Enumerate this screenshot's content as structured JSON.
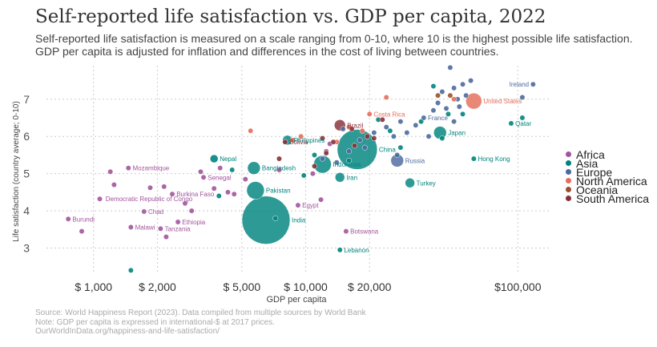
{
  "title": "Self-reported life satisfaction vs. GDP per capita, 2022",
  "subtitle": "Self-reported life satisfaction is measured on a scale ranging from 0-10, where 10 is the highest possible life satisfaction. GDP per capita is adjusted for inflation and differences in the cost of living between countries.",
  "footer": {
    "source": "Source: World Happiness Report (2023). Data compiled from multiple sources by World Bank",
    "note": "Note: GDP per capita is expressed in international-$ at 2017 prices.",
    "url": "OurWorldInData.org/happiness-and-life-satisfaction/"
  },
  "legend": [
    {
      "name": "Africa",
      "color": "#a2559c"
    },
    {
      "name": "Asia",
      "color": "#00847e"
    },
    {
      "name": "Europe",
      "color": "#4c6a9c"
    },
    {
      "name": "North America",
      "color": "#e56e5a"
    },
    {
      "name": "Oceania",
      "color": "#9a5129"
    },
    {
      "name": "South America",
      "color": "#883039"
    }
  ],
  "chart_data": {
    "type": "scatter",
    "xlabel": "GDP per capita",
    "ylabel": "Life satisfaction (country average; 0-10)",
    "xscale": "log",
    "xlim": [
      600,
      140000
    ],
    "ylim": [
      2.3,
      7.9
    ],
    "xticks": [
      1000,
      2000,
      5000,
      10000,
      20000,
      100000
    ],
    "xtick_labels": [
      "$ 1,000",
      "$ 2,000",
      "$ 5,000",
      "$ 10,000",
      "$ 20,000",
      "$100,000"
    ],
    "yticks": [
      3,
      4,
      5,
      6,
      7
    ],
    "grid": true,
    "legend_position": "right",
    "series": [
      {
        "name": "Africa",
        "color": "#a2559c",
        "points": [
          {
            "x": 760,
            "y": 3.78,
            "label": "Burundi"
          },
          {
            "x": 1070,
            "y": 4.32,
            "label": "Democratic Republic of Congo"
          },
          {
            "x": 1500,
            "y": 3.56,
            "label": "Malawi"
          },
          {
            "x": 1460,
            "y": 5.15,
            "label": "Mozambique"
          },
          {
            "x": 1730,
            "y": 3.98,
            "label": "Chad"
          },
          {
            "x": 2070,
            "y": 3.52,
            "label": "Tanzania"
          },
          {
            "x": 2500,
            "y": 3.7,
            "label": "Ethiopia"
          },
          {
            "x": 2350,
            "y": 4.45,
            "label": "Burkina Faso"
          },
          {
            "x": 3300,
            "y": 4.9,
            "label": "Senegal"
          },
          {
            "x": 1200,
            "y": 5.05
          },
          {
            "x": 1850,
            "y": 4.62
          },
          {
            "x": 2150,
            "y": 4.65
          },
          {
            "x": 2700,
            "y": 4.2
          },
          {
            "x": 3200,
            "y": 5.05
          },
          {
            "x": 3700,
            "y": 4.6
          },
          {
            "x": 4300,
            "y": 4.5
          },
          {
            "x": 4600,
            "y": 4.45
          },
          {
            "x": 2900,
            "y": 4.0
          },
          {
            "x": 2200,
            "y": 3.3
          },
          {
            "x": 1250,
            "y": 4.7
          },
          {
            "x": 880,
            "y": 3.45
          },
          {
            "x": 3950,
            "y": 5.15
          },
          {
            "x": 7500,
            "y": 5.1
          },
          {
            "x": 11800,
            "y": 4.3
          },
          {
            "x": 9200,
            "y": 4.15,
            "label": "Egypt"
          },
          {
            "x": 15500,
            "y": 3.45,
            "label": "Botswana"
          },
          {
            "x": 12500,
            "y": 5.6
          },
          {
            "x": 10800,
            "y": 5.0
          },
          {
            "x": 5200,
            "y": 4.85
          },
          {
            "x": 13000,
            "y": 5.8
          }
        ]
      },
      {
        "name": "Asia",
        "color": "#00847e",
        "points": [
          {
            "x": 1500,
            "y": 2.4
          },
          {
            "x": 3700,
            "y": 5.4,
            "label": "Nepal"
          },
          {
            "x": 5800,
            "y": 4.55,
            "label": "Pakistan"
          },
          {
            "x": 5700,
            "y": 5.15,
            "label": "Bangladesh"
          },
          {
            "x": 6500,
            "y": 3.75,
            "label": "India"
          },
          {
            "x": 8200,
            "y": 5.9,
            "label": "Philippines"
          },
          {
            "x": 12000,
            "y": 5.25,
            "label": "Indonesia"
          },
          {
            "x": 14500,
            "y": 4.9,
            "label": "Iran"
          },
          {
            "x": 17500,
            "y": 5.65,
            "label": "China"
          },
          {
            "x": 14500,
            "y": 2.95,
            "label": "Lebanon"
          },
          {
            "x": 43000,
            "y": 6.1,
            "label": "Japan"
          },
          {
            "x": 62000,
            "y": 5.4,
            "label": "Hong Kong"
          },
          {
            "x": 93000,
            "y": 6.35,
            "label": "Qatar"
          },
          {
            "x": 40000,
            "y": 7.35
          },
          {
            "x": 31000,
            "y": 4.75,
            "label": "Turkey"
          },
          {
            "x": 28000,
            "y": 5.7
          },
          {
            "x": 44000,
            "y": 5.95
          },
          {
            "x": 4500,
            "y": 5.1
          },
          {
            "x": 3900,
            "y": 4.4
          },
          {
            "x": 7200,
            "y": 3.8
          },
          {
            "x": 9800,
            "y": 4.95
          },
          {
            "x": 11000,
            "y": 5.5
          },
          {
            "x": 25000,
            "y": 6.15
          },
          {
            "x": 35000,
            "y": 6.4
          },
          {
            "x": 47000,
            "y": 6.6
          },
          {
            "x": 55000,
            "y": 6.6
          },
          {
            "x": 105000,
            "y": 6.5
          },
          {
            "x": 22000,
            "y": 6.45
          },
          {
            "x": 16000,
            "y": 5.35
          }
        ]
      },
      {
        "name": "Europe",
        "color": "#4c6a9c",
        "points": [
          {
            "x": 48000,
            "y": 7.85
          },
          {
            "x": 52000,
            "y": 7.0
          },
          {
            "x": 57000,
            "y": 7.1
          },
          {
            "x": 60000,
            "y": 7.5
          },
          {
            "x": 46000,
            "y": 6.75
          },
          {
            "x": 42000,
            "y": 6.9
          },
          {
            "x": 50000,
            "y": 6.4
          },
          {
            "x": 40000,
            "y": 6.7
          },
          {
            "x": 38000,
            "y": 6.0
          },
          {
            "x": 36000,
            "y": 6.5,
            "label": "France"
          },
          {
            "x": 33000,
            "y": 6.3
          },
          {
            "x": 30000,
            "y": 6.1
          },
          {
            "x": 28000,
            "y": 6.4
          },
          {
            "x": 26000,
            "y": 6.0
          },
          {
            "x": 27000,
            "y": 5.5
          },
          {
            "x": 21000,
            "y": 6.1
          },
          {
            "x": 24000,
            "y": 6.25
          },
          {
            "x": 18000,
            "y": 5.9
          },
          {
            "x": 16000,
            "y": 5.6
          },
          {
            "x": 15000,
            "y": 6.2
          },
          {
            "x": 14000,
            "y": 5.3
          },
          {
            "x": 12000,
            "y": 5.4
          },
          {
            "x": 19000,
            "y": 5.7
          },
          {
            "x": 27000,
            "y": 5.35,
            "label": "Russia"
          },
          {
            "x": 44000,
            "y": 7.2
          },
          {
            "x": 50000,
            "y": 7.3
          },
          {
            "x": 55000,
            "y": 7.4
          },
          {
            "x": 53000,
            "y": 6.8
          },
          {
            "x": 105000,
            "y": 7.05
          },
          {
            "x": 118000,
            "y": 7.4,
            "label": "Ireland"
          }
        ]
      },
      {
        "name": "North America",
        "color": "#e56e5a",
        "points": [
          {
            "x": 62000,
            "y": 6.95,
            "label": "United States"
          },
          {
            "x": 24000,
            "y": 7.05
          },
          {
            "x": 20000,
            "y": 6.6,
            "label": "Costa Rica"
          },
          {
            "x": 18500,
            "y": 6.15
          },
          {
            "x": 16000,
            "y": 6.25
          },
          {
            "x": 9500,
            "y": 6.0
          },
          {
            "x": 8700,
            "y": 5.9
          },
          {
            "x": 5500,
            "y": 6.15
          },
          {
            "x": 14000,
            "y": 5.85
          },
          {
            "x": 50000,
            "y": 7.0
          }
        ]
      },
      {
        "name": "Oceania",
        "color": "#9a5129",
        "points": [
          {
            "x": 48000,
            "y": 7.1
          },
          {
            "x": 42000,
            "y": 7.1
          }
        ]
      },
      {
        "name": "South America",
        "color": "#883039",
        "points": [
          {
            "x": 8000,
            "y": 5.85,
            "label": "Bolivia"
          },
          {
            "x": 14500,
            "y": 6.3,
            "label": "Brazil"
          },
          {
            "x": 12500,
            "y": 5.55
          },
          {
            "x": 11000,
            "y": 5.2
          },
          {
            "x": 19500,
            "y": 6.0
          },
          {
            "x": 21000,
            "y": 5.95
          },
          {
            "x": 23000,
            "y": 6.45
          },
          {
            "x": 13500,
            "y": 5.85
          },
          {
            "x": 17000,
            "y": 5.75
          },
          {
            "x": 16500,
            "y": 6.2
          },
          {
            "x": 12000,
            "y": 5.95
          },
          {
            "x": 7500,
            "y": 5.4
          }
        ]
      }
    ]
  }
}
